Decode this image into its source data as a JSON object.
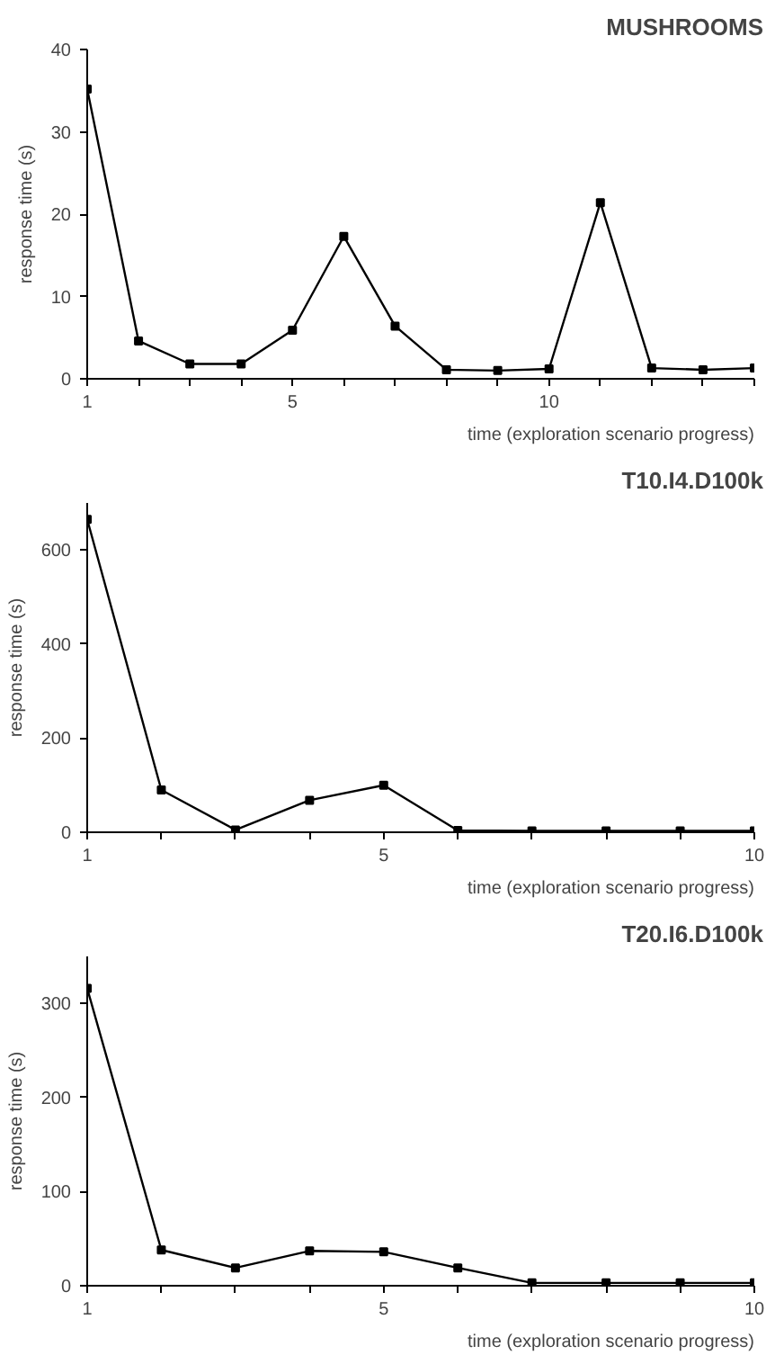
{
  "chart_data": [
    {
      "type": "line",
      "title": "MUSHROOMS",
      "xlabel": "time (exploration scenario progress)",
      "ylabel": "response time (s)",
      "x": [
        1,
        2,
        3,
        4,
        5,
        6,
        7,
        8,
        9,
        10,
        11,
        12,
        13,
        14
      ],
      "series": [
        {
          "color": "#000000",
          "values": [
            35.2,
            4.6,
            1.8,
            1.8,
            5.9,
            17.3,
            6.4,
            1.1,
            1.0,
            1.2,
            21.4,
            1.3,
            1.1,
            1.3
          ]
        }
      ],
      "xlim": [
        1,
        14
      ],
      "xticks": [
        1,
        {
          "value": 2,
          "label": null
        },
        {
          "value": 3,
          "label": null
        },
        {
          "value": 4,
          "label": null
        },
        5,
        {
          "value": 6,
          "label": null
        },
        {
          "value": 7,
          "label": null
        },
        {
          "value": 8,
          "label": null
        },
        {
          "value": 9,
          "label": null
        },
        10,
        {
          "value": 11,
          "label": null
        },
        {
          "value": 12,
          "label": null
        },
        {
          "value": 13,
          "label": null
        },
        {
          "value": 14,
          "label": null
        }
      ],
      "ylim": [
        0,
        40
      ],
      "yticks": [
        0,
        10,
        20,
        30,
        40
      ],
      "grid": false,
      "marker": "square",
      "line_style": "solid"
    },
    {
      "type": "line",
      "title": "T10.I4.D100k",
      "xlabel": "time (exploration scenario progress)",
      "ylabel": "response time (s)",
      "x": [
        1,
        2,
        3,
        4,
        5,
        6,
        7,
        8,
        9,
        10
      ],
      "series": [
        {
          "color": "#000000",
          "values": [
            665,
            90,
            5,
            68,
            100,
            4,
            3,
            3,
            3,
            3
          ]
        }
      ],
      "xlim": [
        1,
        10
      ],
      "xticks": [
        1,
        {
          "value": 2,
          "label": null
        },
        {
          "value": 3,
          "label": null
        },
        {
          "value": 4,
          "label": null
        },
        5,
        {
          "value": 6,
          "label": null
        },
        {
          "value": 7,
          "label": null
        },
        {
          "value": 8,
          "label": null
        },
        {
          "value": 9,
          "label": null
        },
        10
      ],
      "ylim": [
        0,
        700
      ],
      "yticks": [
        0,
        200,
        400,
        600
      ],
      "grid": false,
      "marker": "square",
      "line_style": "solid"
    },
    {
      "type": "line",
      "title": "T20.I6.D100k",
      "xlabel": "time (exploration scenario progress)",
      "ylabel": "response time (s)",
      "x": [
        1,
        2,
        3,
        4,
        5,
        6,
        7,
        8,
        9,
        10
      ],
      "series": [
        {
          "color": "#000000",
          "values": [
            316,
            38,
            19,
            37,
            36,
            19,
            3,
            3,
            3,
            3
          ]
        }
      ],
      "xlim": [
        1,
        10
      ],
      "xticks": [
        1,
        {
          "value": 2,
          "label": null
        },
        {
          "value": 3,
          "label": null
        },
        {
          "value": 4,
          "label": null
        },
        5,
        {
          "value": 6,
          "label": null
        },
        {
          "value": 7,
          "label": null
        },
        {
          "value": 8,
          "label": null
        },
        {
          "value": 9,
          "label": null
        },
        10
      ],
      "ylim": [
        0,
        350
      ],
      "yticks": [
        0,
        100,
        200,
        300
      ],
      "grid": false,
      "marker": "square",
      "line_style": "solid"
    }
  ]
}
